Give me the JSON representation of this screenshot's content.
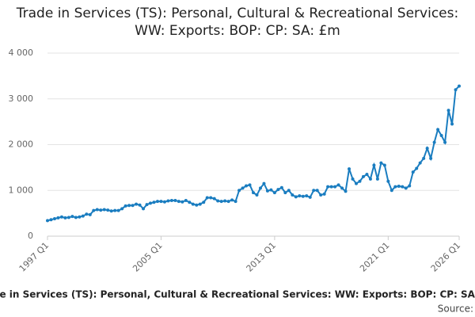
{
  "chart_data": {
    "type": "line",
    "title": "Trade in Services (TS): Personal, Cultural & Recreational Services: WW: Exports: BOP: CP: SA: £m",
    "footer": "Trade in Services (TS): Personal, Cultural & Recreational Services: WW: Exports: BOP: CP: SA: £m",
    "source": "Source:",
    "categories": [
      "1997 Q1",
      null,
      null,
      null,
      null,
      null,
      null,
      null,
      null,
      null,
      null,
      null,
      null,
      null,
      null,
      null,
      null,
      null,
      null,
      null,
      null,
      null,
      null,
      null,
      null,
      null,
      null,
      null,
      null,
      null,
      null,
      null,
      "2005 Q1",
      null,
      null,
      null,
      null,
      null,
      null,
      null,
      null,
      null,
      null,
      null,
      null,
      null,
      null,
      null,
      null,
      null,
      null,
      null,
      null,
      null,
      null,
      null,
      null,
      null,
      null,
      null,
      null,
      null,
      null,
      null,
      "2013 Q1",
      null,
      null,
      null,
      null,
      null,
      null,
      null,
      null,
      null,
      null,
      null,
      null,
      null,
      null,
      null,
      null,
      null,
      null,
      null,
      null,
      null,
      null,
      null,
      null,
      null,
      null,
      null,
      null,
      null,
      null,
      null,
      "2021 Q1",
      null,
      null,
      null,
      null,
      null,
      null,
      null,
      null,
      null,
      null,
      null,
      null,
      null,
      null,
      null,
      null,
      null,
      null,
      null,
      "2026 Q1"
    ],
    "series": [
      {
        "name": "Trade in Services (TS): Personal, Cultural & Recreational Services: WW: Exports: BOP: CP: SA: £m",
        "color": "#1a7dc0",
        "values": [
          340,
          360,
          380,
          400,
          420,
          400,
          410,
          430,
          410,
          420,
          440,
          480,
          470,
          560,
          580,
          570,
          580,
          570,
          550,
          560,
          560,
          600,
          660,
          670,
          670,
          700,
          680,
          600,
          690,
          720,
          740,
          760,
          760,
          750,
          770,
          780,
          780,
          760,
          750,
          780,
          740,
          700,
          680,
          700,
          740,
          840,
          840,
          820,
          770,
          760,
          770,
          760,
          790,
          760,
          1000,
          1050,
          1100,
          1120,
          950,
          900,
          1050,
          1150,
          990,
          1010,
          950,
          1020,
          1060,
          950,
          1000,
          900,
          860,
          880,
          870,
          880,
          850,
          1000,
          1000,
          900,
          920,
          1080,
          1080,
          1080,
          1120,
          1050,
          980,
          1470,
          1250,
          1150,
          1200,
          1300,
          1350,
          1250,
          1550,
          1250,
          1600,
          1550,
          1200,
          1000,
          1080,
          1090,
          1080,
          1050,
          1100,
          1400,
          1480,
          1600,
          1700,
          1920,
          1700,
          2050,
          2330,
          2200,
          2050,
          2750,
          2450,
          3200,
          3280
        ]
      }
    ],
    "ylim": [
      0,
      4000
    ],
    "yticks": [
      0,
      {
        "value": 1000,
        "label": "1 000"
      },
      {
        "value": 2000,
        "label": "2 000"
      },
      {
        "value": 3000,
        "label": "3 000"
      },
      {
        "value": 4000,
        "label": "4 000"
      }
    ],
    "grid": true
  }
}
